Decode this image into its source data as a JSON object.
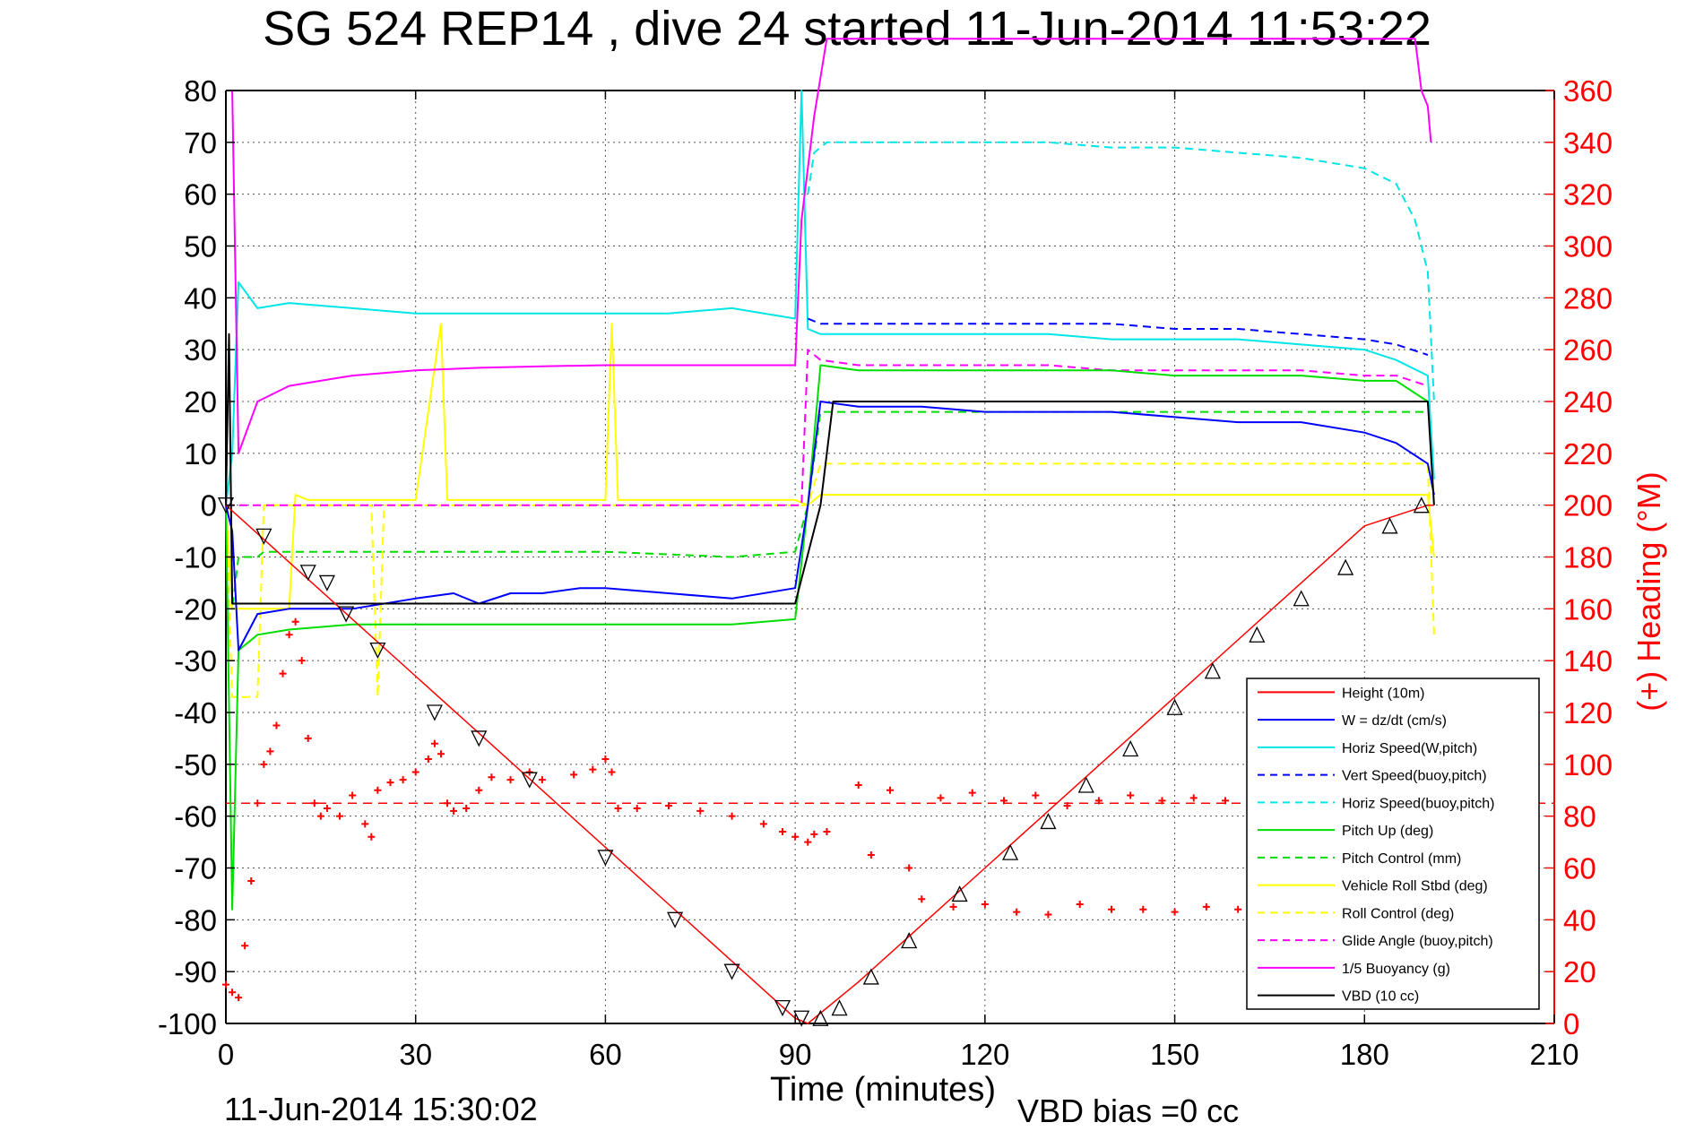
{
  "chart_data": {
    "type": "line",
    "title": "SG 524   REP14  , dive 24 started 11-Jun-2014 11:53:22",
    "xlabel": "Time (minutes)",
    "ylabel_right": "(+) Heading (°M)",
    "footer_left": "11-Jun-2014 15:30:02",
    "footer_right": "VBD bias =0 cc",
    "xlim": [
      0,
      210
    ],
    "ylim_left": [
      -100,
      80
    ],
    "ylim_right": [
      0,
      360
    ],
    "xticks": [
      "0",
      "30",
      "60",
      "90",
      "120",
      "150",
      "180",
      "210"
    ],
    "yticks_left": [
      "80",
      "70",
      "60",
      "50",
      "40",
      "30",
      "20",
      "10",
      "0",
      "-10",
      "-20",
      "-30",
      "-40",
      "-50",
      "-60",
      "-70",
      "-80",
      "-90",
      "-100"
    ],
    "yticks_right": [
      "360",
      "340",
      "320",
      "300",
      "280",
      "260",
      "240",
      "220",
      "200",
      "180",
      "160",
      "140",
      "120",
      "100",
      "80",
      "60",
      "40",
      "20",
      "0"
    ],
    "grid": true,
    "legend_position": "bottom-right",
    "colors": {
      "red": "#ff0000",
      "blue": "#0000ff",
      "cyan": "#00e5e5",
      "green": "#00dd00",
      "yellow": "#ffff00",
      "magenta": "#ff00ff",
      "black": "#000000"
    },
    "series": [
      {
        "name": "Height (10m)",
        "color": "#ff0000",
        "style": "solid",
        "x": [
          0,
          10,
          20,
          30,
          40,
          50,
          60,
          70,
          80,
          90,
          92,
          100,
          110,
          120,
          130,
          140,
          150,
          160,
          170,
          180,
          190,
          191
        ],
        "y": [
          0,
          -11,
          -22,
          -33,
          -44,
          -55,
          -66,
          -77,
          -88,
          -99,
          -100,
          -92,
          -81,
          -70,
          -59,
          -48,
          -37,
          -26,
          -15,
          -4,
          0,
          0
        ]
      },
      {
        "name": "W = dz/dt (cm/s)",
        "color": "#0000ff",
        "style": "solid",
        "x": [
          0,
          1,
          2,
          5,
          10,
          20,
          30,
          36,
          40,
          45,
          50,
          56,
          60,
          70,
          80,
          90,
          92,
          94,
          100,
          110,
          120,
          130,
          140,
          150,
          160,
          170,
          180,
          185,
          190,
          191
        ],
        "y": [
          0,
          -5,
          -28,
          -21,
          -20,
          -20,
          -18,
          -17,
          -19,
          -17,
          -17,
          -16,
          -16,
          -17,
          -18,
          -16,
          0,
          20,
          19,
          19,
          18,
          18,
          18,
          17,
          16,
          16,
          14,
          12,
          8,
          2
        ]
      },
      {
        "name": "Horiz Speed(W,pitch)",
        "color": "#00e5e5",
        "style": "solid",
        "x": [
          0,
          1,
          2,
          5,
          10,
          20,
          30,
          40,
          50,
          60,
          70,
          80,
          90,
          91,
          92,
          94,
          100,
          110,
          120,
          130,
          140,
          150,
          160,
          170,
          180,
          185,
          190,
          191
        ],
        "y": [
          0,
          10,
          43,
          38,
          39,
          38,
          37,
          37,
          37,
          37,
          37,
          38,
          36,
          80,
          34,
          33,
          33,
          33,
          33,
          33,
          32,
          32,
          32,
          31,
          30,
          28,
          25,
          5
        ]
      },
      {
        "name": "Vert Speed(buoy,pitch)",
        "color": "#0000ff",
        "style": "dashed",
        "x": [
          92,
          94,
          100,
          110,
          120,
          130,
          140,
          150,
          160,
          170,
          180,
          185,
          190
        ],
        "y": [
          36,
          35,
          35,
          35,
          35,
          35,
          35,
          34,
          34,
          33,
          32,
          31,
          29
        ]
      },
      {
        "name": "Horiz Speed(buoy,pitch)",
        "color": "#00e5e5",
        "style": "dashed",
        "x": [
          92,
          93,
          95,
          100,
          110,
          120,
          130,
          140,
          150,
          160,
          170,
          180,
          185,
          188,
          190,
          191
        ],
        "y": [
          60,
          68,
          70,
          70,
          70,
          70,
          70,
          69,
          69,
          68,
          67,
          65,
          62,
          55,
          45,
          20
        ]
      },
      {
        "name": "Pitch Up (deg)",
        "color": "#00dd00",
        "style": "solid",
        "x": [
          0,
          1,
          2,
          5,
          10,
          20,
          30,
          40,
          50,
          60,
          70,
          80,
          90,
          92,
          94,
          100,
          110,
          120,
          130,
          140,
          150,
          160,
          170,
          180,
          185,
          190
        ],
        "y": [
          0,
          -78,
          -28,
          -25,
          -24,
          -23,
          -23,
          -23,
          -23,
          -23,
          -23,
          -23,
          -22,
          0,
          27,
          26,
          26,
          26,
          26,
          26,
          25,
          25,
          25,
          24,
          24,
          20
        ]
      },
      {
        "name": "Pitch Control (mm)",
        "color": "#00dd00",
        "style": "dashed",
        "x": [
          0,
          1,
          2,
          5,
          6,
          10,
          30,
          60,
          80,
          90,
          92,
          94,
          100,
          120,
          150,
          180,
          185,
          190
        ],
        "y": [
          0,
          -20,
          -10,
          -10,
          -9,
          -9,
          -9,
          -9,
          -10,
          -9,
          0,
          18,
          18,
          18,
          18,
          18,
          18,
          18
        ]
      },
      {
        "name": "Vehicle Roll Stbd (deg)",
        "color": "#ffff00",
        "style": "solid",
        "x": [
          0,
          1,
          10,
          11,
          13,
          30,
          34,
          35,
          60,
          61,
          62,
          90,
          92,
          94,
          100,
          180,
          190,
          191
        ],
        "y": [
          0,
          -20,
          -20,
          2,
          1,
          1,
          35,
          1,
          1,
          35,
          1,
          1,
          0,
          2,
          2,
          2,
          2,
          -10
        ]
      },
      {
        "name": "Roll Control (deg)",
        "color": "#ffff00",
        "style": "dashed",
        "x": [
          0,
          1,
          5,
          6,
          23,
          24,
          25,
          90,
          92,
          94,
          100,
          180,
          190,
          191
        ],
        "y": [
          0,
          -37,
          -37,
          0,
          0,
          -37,
          0,
          0,
          0,
          8,
          8,
          8,
          8,
          -25
        ]
      },
      {
        "name": "Glide Angle (buoy,pitch)",
        "color": "#ff00ff",
        "style": "dashed",
        "x": [
          0,
          90,
          91,
          92,
          94,
          100,
          110,
          120,
          130,
          140,
          150,
          160,
          170,
          180,
          185,
          190
        ],
        "y": [
          0,
          0,
          0,
          30,
          28,
          27,
          27,
          27,
          27,
          26,
          26,
          26,
          26,
          25,
          25,
          23
        ]
      },
      {
        "name": "1/5 Buoyancy (g)",
        "color": "#ff00ff",
        "style": "solid",
        "x": [
          1,
          2,
          5,
          10,
          20,
          30,
          40,
          50,
          60,
          70,
          80,
          89,
          90,
          91,
          93,
          95,
          188,
          189,
          190,
          190.5
        ],
        "y": [
          80,
          10,
          20,
          23,
          25,
          26,
          26.5,
          26.8,
          27,
          27,
          27,
          27,
          27,
          55,
          75,
          90,
          90,
          80,
          77,
          70
        ]
      },
      {
        "name": "VBD (10 cc)",
        "color": "#000000",
        "style": "solid",
        "x": [
          0,
          0.5,
          1,
          90,
          94,
          96,
          100,
          190,
          191
        ],
        "y": [
          0,
          33,
          -19,
          -19,
          0,
          20,
          20,
          20,
          0
        ]
      },
      {
        "name": "Heading",
        "color": "#ff0000",
        "style": "marker",
        "axis": "right",
        "x": [
          0,
          1,
          2,
          3,
          4,
          5,
          6,
          7,
          8,
          9,
          10,
          11,
          12,
          13,
          14,
          15,
          16,
          18,
          20,
          22,
          23,
          24,
          26,
          28,
          30,
          32,
          33,
          34,
          35,
          36,
          38,
          40,
          42,
          45,
          48,
          50,
          55,
          58,
          60,
          61,
          62,
          65,
          70,
          75,
          80,
          85,
          88,
          90,
          92,
          93,
          95,
          100,
          102,
          105,
          108,
          110,
          113,
          115,
          118,
          120,
          123,
          125,
          128,
          130,
          133,
          135,
          138,
          140,
          143,
          145,
          148,
          150,
          153,
          155,
          158,
          160,
          162
        ],
        "y": [
          15,
          12,
          10,
          30,
          55,
          85,
          100,
          105,
          115,
          135,
          150,
          155,
          140,
          110,
          85,
          80,
          83,
          80,
          88,
          77,
          72,
          90,
          93,
          94,
          97,
          102,
          108,
          104,
          85,
          82,
          83,
          90,
          95,
          94,
          97,
          94,
          96,
          98,
          102,
          97,
          83,
          83,
          84,
          82,
          80,
          77,
          74,
          72,
          70,
          73,
          74,
          92,
          65,
          90,
          60,
          48,
          87,
          45,
          89,
          46,
          86,
          43,
          88,
          42,
          84,
          46,
          86,
          44,
          88,
          44,
          86,
          43,
          87,
          45,
          86,
          44,
          72
        ]
      }
    ],
    "legend_labels": [
      "Height (10m)",
      "W = dz/dt (cm/s)",
      "Horiz Speed(W,pitch)",
      "Vert Speed(buoy,pitch)",
      "Horiz Speed(buoy,pitch)",
      "Pitch Up (deg)",
      "Pitch Control (mm)",
      "Vehicle Roll Stbd (deg)",
      "Roll Control (deg)",
      "Glide Angle (buoy,pitch)",
      "1/5 Buoyancy (g)",
      "VBD (10 cc)"
    ],
    "legend_styles": [
      "solid",
      "solid",
      "solid",
      "dashed",
      "dashed",
      "solid",
      "dashed",
      "solid",
      "dashed",
      "dashed",
      "solid",
      "solid"
    ],
    "legend_colors": [
      "#ff0000",
      "#0000ff",
      "#00e5e5",
      "#0000ff",
      "#00e5e5",
      "#00dd00",
      "#00dd00",
      "#ffff00",
      "#ffff00",
      "#ff00ff",
      "#ff00ff",
      "#000000"
    ],
    "mean_heading_line": {
      "color": "#ff0000",
      "style": "dashed",
      "axis": "right",
      "value": 85
    },
    "markers_down": {
      "x": [
        0,
        6,
        13,
        16,
        19,
        24,
        33,
        40,
        48,
        60,
        71,
        80,
        88,
        91
      ],
      "y": [
        0,
        -6,
        -13,
        -15,
        -21,
        -28,
        -40,
        -45,
        -53,
        -68,
        -80,
        -90,
        -97,
        -99
      ]
    },
    "markers_up": {
      "x": [
        94,
        97,
        102,
        108,
        116,
        124,
        130,
        136,
        143,
        150,
        156,
        163,
        170,
        177,
        184,
        189
      ],
      "y": [
        -99,
        -97,
        -91,
        -84,
        -75,
        -67,
        -61,
        -54,
        -47,
        -39,
        -32,
        -25,
        -18,
        -12,
        -4,
        0
      ]
    }
  }
}
